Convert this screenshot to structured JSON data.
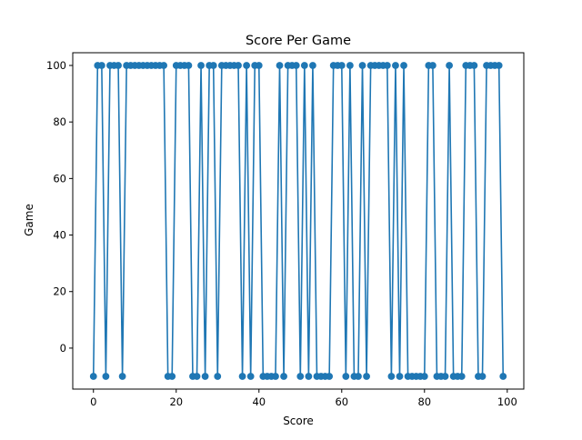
{
  "chart_data": {
    "type": "line",
    "title": "Score Per Game",
    "xlabel": "Score",
    "ylabel": "Game",
    "xlim": [
      -5,
      104
    ],
    "ylim": [
      -14.5,
      104.5
    ],
    "xticks": [
      0,
      20,
      40,
      60,
      80,
      100
    ],
    "yticks": [
      0,
      20,
      40,
      60,
      80,
      100
    ],
    "grid": false,
    "marker": "circle",
    "series_color": "#1f77b4",
    "series": [
      {
        "x": [
          0,
          1,
          2,
          3,
          4,
          5,
          6,
          7,
          8,
          9,
          10,
          11,
          12,
          13,
          14,
          15,
          16,
          17,
          18,
          19,
          20,
          21,
          22,
          23,
          24,
          25,
          26,
          27,
          28,
          29,
          30,
          31,
          32,
          33,
          34,
          35,
          36,
          37,
          38,
          39,
          40,
          41,
          42,
          43,
          44,
          45,
          46,
          47,
          48,
          49,
          50,
          51,
          52,
          53,
          54,
          55,
          56,
          57,
          58,
          59,
          60,
          61,
          62,
          63,
          64,
          65,
          66,
          67,
          68,
          69,
          70,
          71,
          72,
          73,
          74,
          75,
          76,
          77,
          78,
          79,
          80,
          81,
          82,
          83,
          84,
          85,
          86,
          87,
          88,
          89,
          90,
          91,
          92,
          93,
          94,
          95,
          96,
          97,
          98,
          99
        ],
        "values": [
          -10,
          100,
          100,
          -10,
          100,
          100,
          100,
          -10,
          100,
          100,
          100,
          100,
          100,
          100,
          100,
          100,
          100,
          100,
          -10,
          -10,
          100,
          100,
          100,
          100,
          -10,
          -10,
          100,
          -10,
          100,
          100,
          -10,
          100,
          100,
          100,
          100,
          100,
          -10,
          100,
          -10,
          100,
          100,
          -10,
          -10,
          -10,
          -10,
          100,
          -10,
          100,
          100,
          100,
          -10,
          100,
          -10,
          100,
          -10,
          -10,
          -10,
          -10,
          100,
          100,
          100,
          -10,
          100,
          -10,
          -10,
          100,
          -10,
          100,
          100,
          100,
          100,
          100,
          -10,
          100,
          -10,
          100,
          -10,
          -10,
          -10,
          -10,
          -10,
          100,
          100,
          -10,
          -10,
          -10,
          100,
          -10,
          -10,
          -10,
          100,
          100,
          100,
          -10,
          -10,
          100,
          100,
          100,
          100,
          -10
        ]
      }
    ]
  }
}
